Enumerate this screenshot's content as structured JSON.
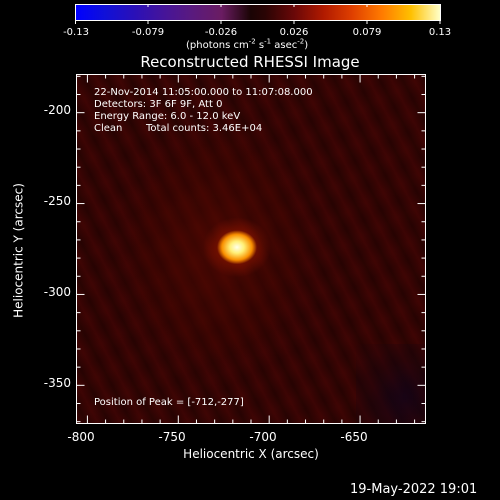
{
  "colorbar": {
    "ticks": [
      "-0.13",
      "-0.079",
      "-0.026",
      "0.026",
      "0.079",
      "0.13"
    ],
    "units_prefix": "(photons cm",
    "units_exp1": "-2",
    "units_mid1": " s",
    "units_exp2": "-1",
    "units_mid2": " asec",
    "units_exp3": "-2",
    "units_suffix": ")"
  },
  "title": "Reconstructed RHESSI Image",
  "annotations": {
    "time_range": "22-Nov-2014 11:05:00.000 to 11:07:08.000",
    "detectors": "Detectors: 3F 6F 9F, Att 0",
    "energy_range": "Energy Range: 6.0 - 12.0 keV",
    "algorithm": "Clean",
    "total_counts": "Total counts: 3.46E+04",
    "peak_position": "Position of Peak = [-712,-277]"
  },
  "axes": {
    "xlabel": "Heliocentric X (arcsec)",
    "ylabel": "Heliocentric Y (arcsec)",
    "xticks": [
      "-800",
      "-750",
      "-700",
      "-650"
    ],
    "yticks": [
      "-200",
      "-250",
      "-300",
      "-350"
    ],
    "xlim": [
      -806,
      -614
    ],
    "ylim": [
      -371,
      -179
    ]
  },
  "image": {
    "peak_x": -712,
    "peak_y": -277,
    "colormap": "rhessi-heat"
  },
  "footer": {
    "date": "19-May-2022 19:01"
  }
}
